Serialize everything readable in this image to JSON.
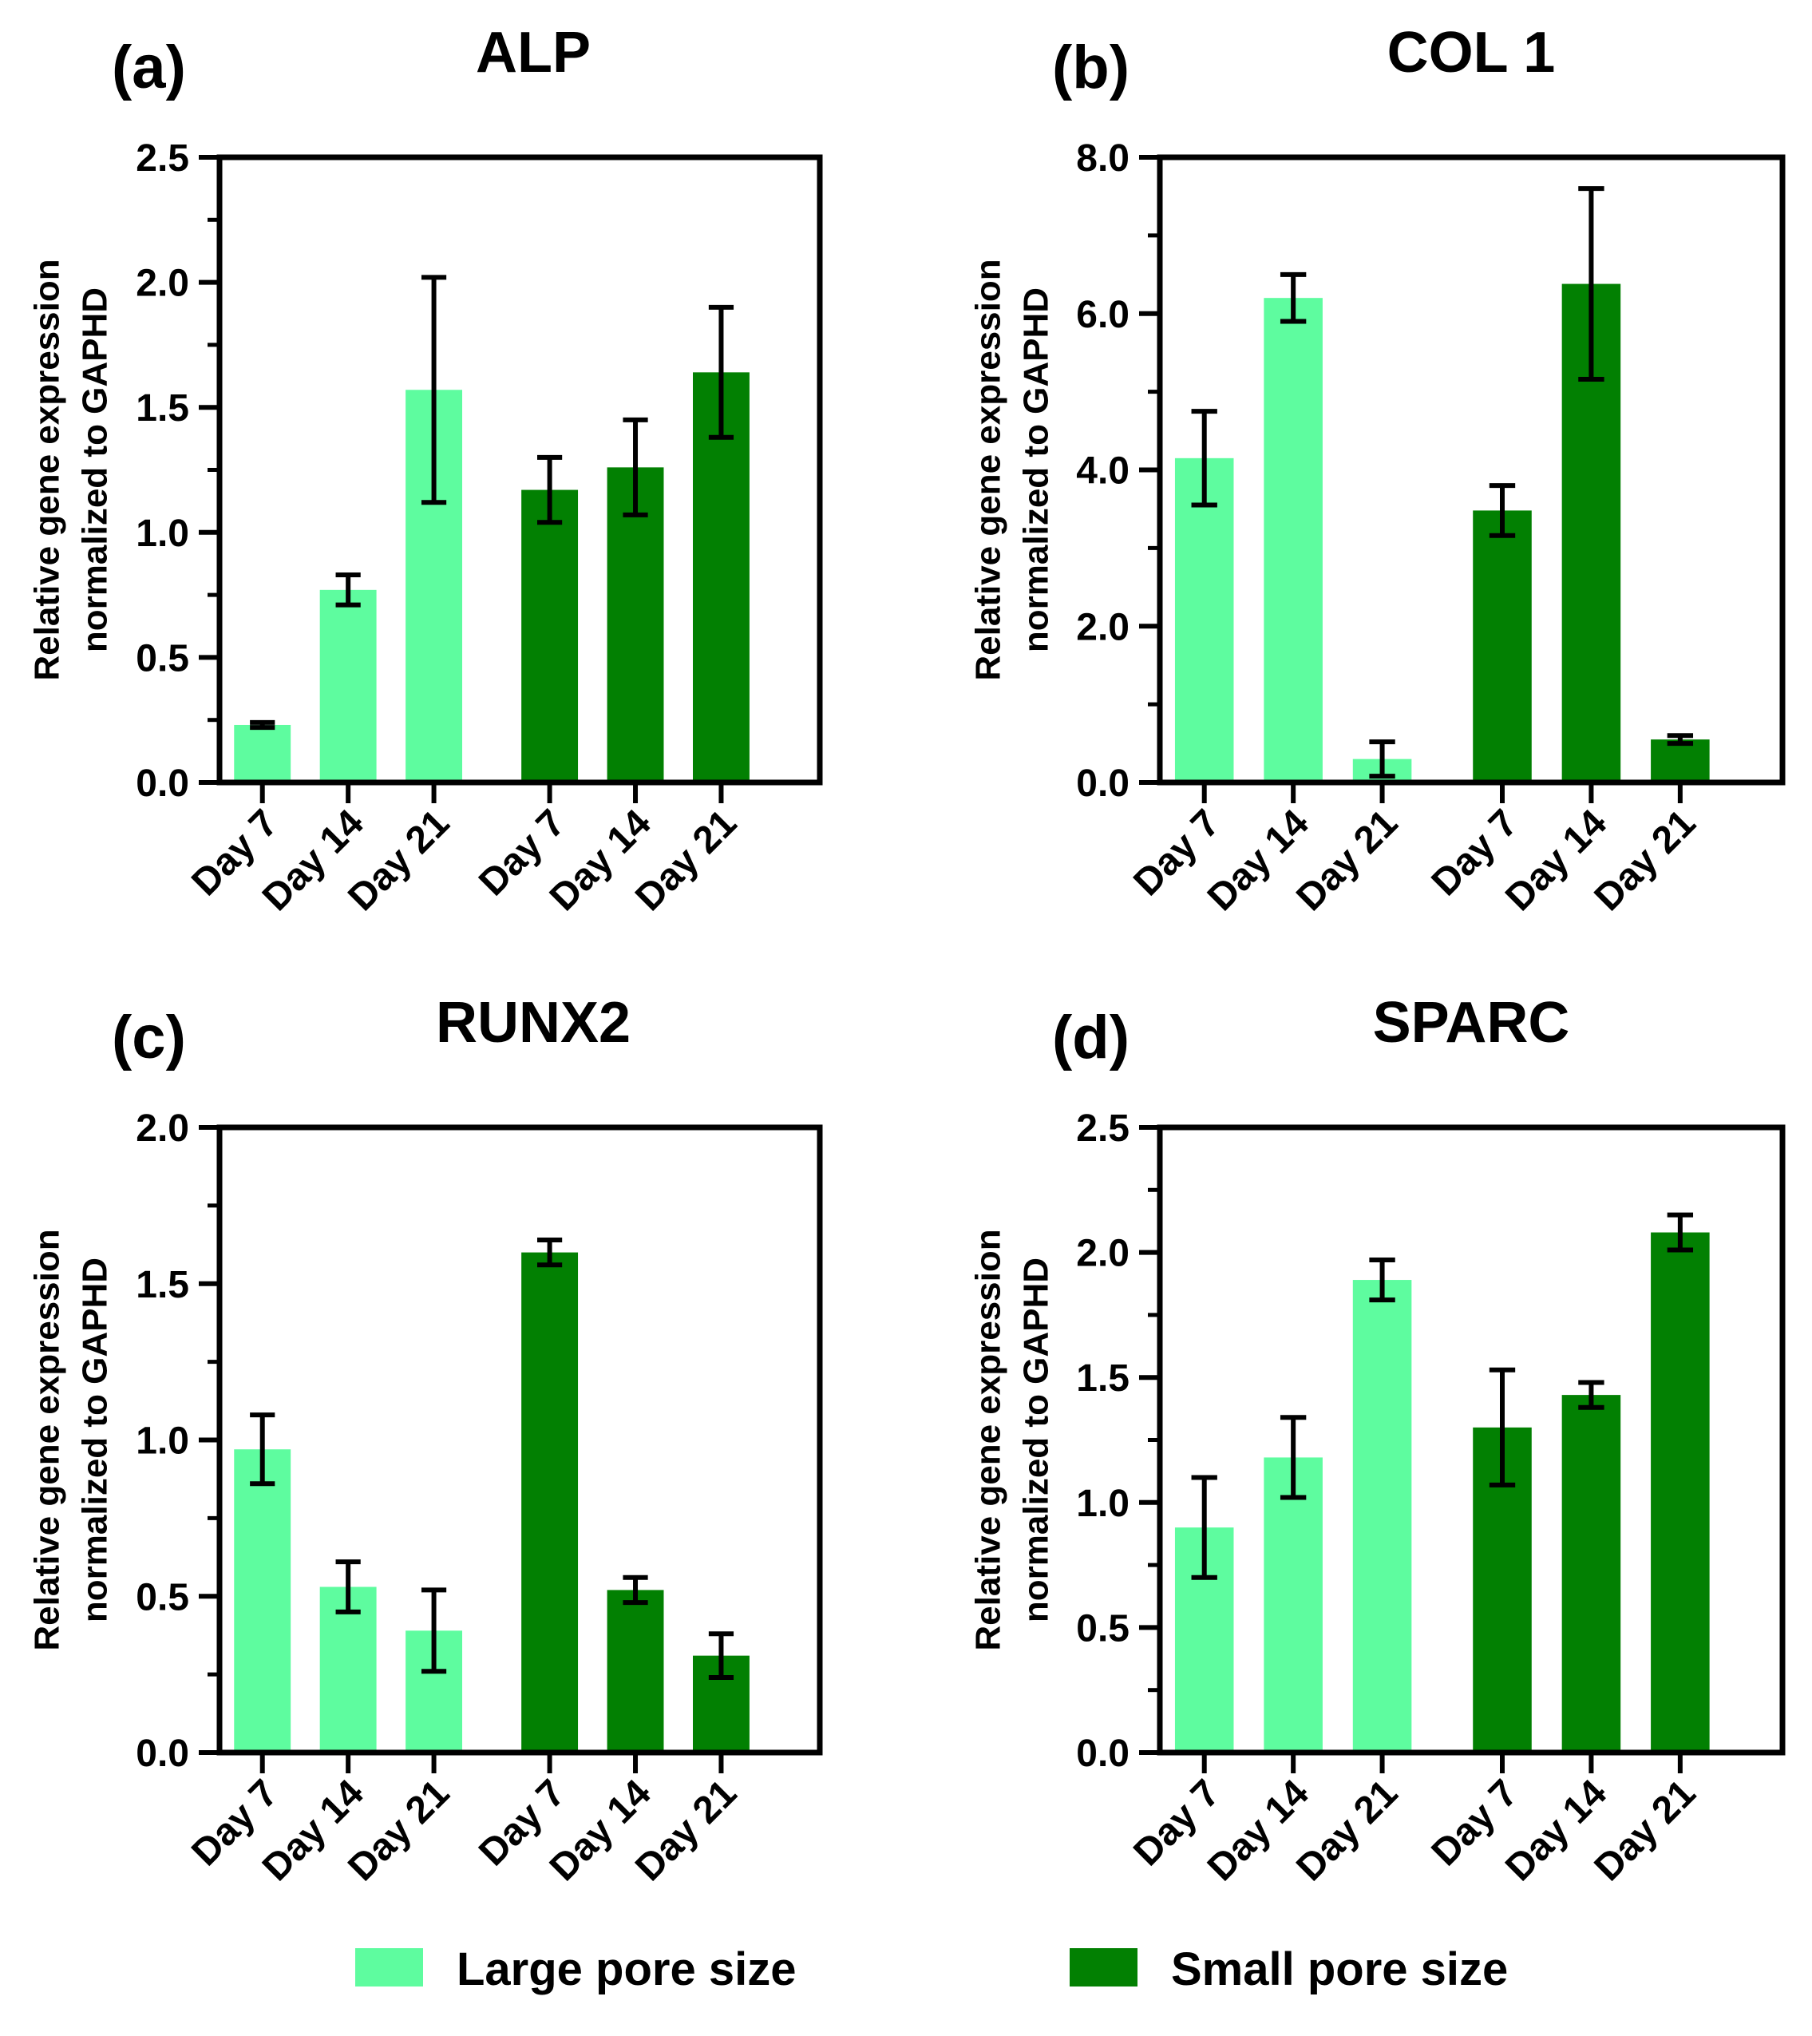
{
  "colors": {
    "large": "#5EFC9F",
    "small": "#028002"
  },
  "legend": [
    {
      "label": "Large pore size",
      "color": "#5EFC9F"
    },
    {
      "label": "Small pore size",
      "color": "#028002"
    }
  ],
  "chart_data": [
    {
      "type": "bar",
      "panel": "(a)",
      "title": "ALP",
      "ylabel_lines": [
        "Relative gene expression",
        "normalized to GAPHD"
      ],
      "ylim": [
        0,
        2.5
      ],
      "yticks": [
        "0.0",
        "0.5",
        "1.0",
        "1.5",
        "2.0",
        "2.5"
      ],
      "categories": [
        "Day 7",
        "Day 14",
        "Day 21"
      ],
      "series": [
        {
          "name": "Large pore size",
          "values": [
            0.23,
            0.77,
            1.57
          ],
          "errors": [
            0.01,
            0.06,
            0.45
          ]
        },
        {
          "name": "Small pore size",
          "values": [
            1.17,
            1.26,
            1.64
          ],
          "errors": [
            0.13,
            0.19,
            0.26
          ]
        }
      ]
    },
    {
      "type": "bar",
      "panel": "(b)",
      "title": "COL 1",
      "ylabel_lines": [
        "Relative gene expression",
        "normalized to GAPHD"
      ],
      "ylim": [
        0,
        8
      ],
      "yticks": [
        "0.0",
        "2.0",
        "4.0",
        "6.0",
        "8.0"
      ],
      "categories": [
        "Day 7",
        "Day 14",
        "Day 21"
      ],
      "series": [
        {
          "name": "Large pore size",
          "values": [
            4.15,
            6.2,
            0.3
          ],
          "errors": [
            0.6,
            0.3,
            0.22
          ]
        },
        {
          "name": "Small pore size",
          "values": [
            3.48,
            6.38,
            0.55
          ],
          "errors": [
            0.32,
            1.22,
            0.05
          ]
        }
      ]
    },
    {
      "type": "bar",
      "panel": "(c)",
      "title": "RUNX2",
      "ylabel_lines": [
        "Relative gene expression",
        "normalized to GAPHD"
      ],
      "ylim": [
        0,
        2.0
      ],
      "yticks": [
        "0.0",
        "0.5",
        "1.0",
        "1.5",
        "2.0"
      ],
      "categories": [
        "Day 7",
        "Day 14",
        "Day 21"
      ],
      "series": [
        {
          "name": "Large pore size",
          "values": [
            0.97,
            0.53,
            0.39
          ],
          "errors": [
            0.11,
            0.08,
            0.13
          ]
        },
        {
          "name": "Small pore size",
          "values": [
            1.6,
            0.52,
            0.31
          ],
          "errors": [
            0.04,
            0.04,
            0.07
          ]
        }
      ]
    },
    {
      "type": "bar",
      "panel": "(d)",
      "title": "SPARC",
      "ylabel_lines": [
        "Relative gene expression",
        "normalized to GAPHD"
      ],
      "ylim": [
        0,
        2.5
      ],
      "yticks": [
        "0.0",
        "0.5",
        "1.0",
        "1.5",
        "2.0",
        "2.5"
      ],
      "categories": [
        "Day 7",
        "Day 14",
        "Day 21"
      ],
      "series": [
        {
          "name": "Large pore size",
          "values": [
            0.9,
            1.18,
            1.89
          ],
          "errors": [
            0.2,
            0.16,
            0.08
          ]
        },
        {
          "name": "Small pore size",
          "values": [
            1.3,
            1.43,
            2.08
          ],
          "errors": [
            0.23,
            0.05,
            0.07
          ]
        }
      ]
    }
  ]
}
